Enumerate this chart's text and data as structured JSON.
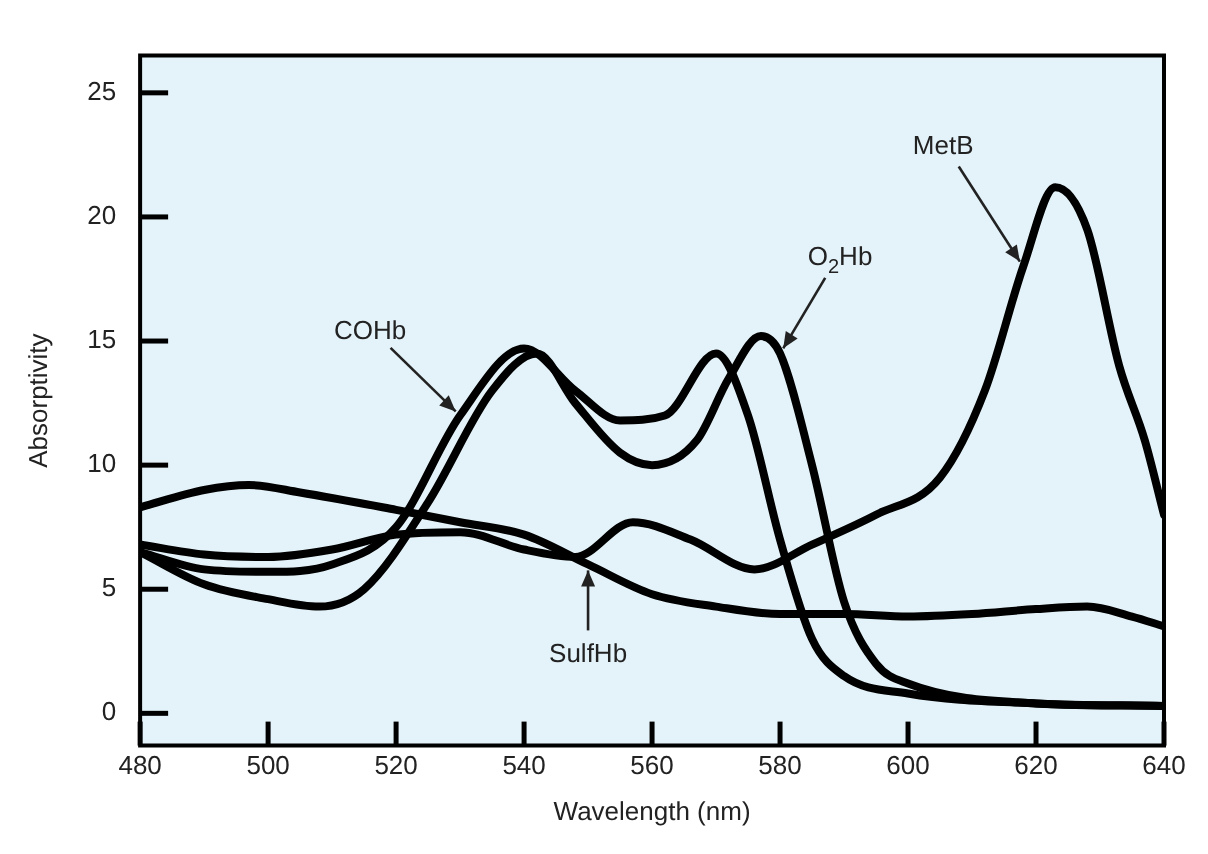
{
  "chart_data": {
    "type": "line",
    "xlabel": "Wavelength (nm)",
    "ylabel": "Absorptivity",
    "xlim": [
      480,
      640
    ],
    "xticks": [
      480,
      500,
      520,
      540,
      560,
      580,
      600,
      620,
      640
    ],
    "ylim": [
      -1.3,
      26.5
    ],
    "yticks": [
      0,
      5,
      10,
      15,
      20,
      25
    ],
    "grid": false,
    "legend": false,
    "marker": "none",
    "line_style": "solid",
    "series": [
      {
        "color": "#000000",
        "x": [
          480,
          490,
          500,
          510,
          520,
          530,
          540,
          548,
          555,
          562,
          570,
          575,
          580,
          585,
          590,
          600,
          620,
          640
        ],
        "values": [
          6.5,
          5.8,
          5.7,
          6,
          7.5,
          12,
          14.7,
          13,
          11.8,
          12,
          14.5,
          12,
          7,
          3,
          1.5,
          0.8,
          0.4,
          0.3
        ]
      },
      {
        "color": "#000000",
        "x": [
          480,
          490,
          500,
          508,
          515,
          525,
          535,
          542,
          548,
          555,
          560,
          567,
          572,
          577,
          580,
          585,
          590,
          595,
          600,
          620,
          640
        ],
        "values": [
          6.5,
          5.2,
          4.6,
          4.3,
          5,
          8.5,
          13,
          14.5,
          12.5,
          10.5,
          10,
          11,
          13.5,
          15.2,
          14.5,
          10,
          4.5,
          2,
          1.2,
          0.4,
          0.3
        ]
      },
      {
        "color": "#000000",
        "x": [
          480,
          490,
          500,
          510,
          520,
          530,
          540,
          548,
          557,
          566,
          576,
          585,
          595,
          605,
          612,
          618,
          623,
          628,
          633,
          637,
          640
        ],
        "values": [
          6.8,
          6.4,
          6.3,
          6.6,
          7.2,
          7.3,
          6.6,
          6.3,
          7.7,
          7,
          5.8,
          6.8,
          8,
          9.5,
          13,
          18,
          21.2,
          19.5,
          14,
          11,
          8
        ]
      },
      {
        "color": "#000000",
        "x": [
          480,
          490,
          497,
          505,
          520,
          530,
          540,
          550,
          560,
          570,
          580,
          590,
          600,
          610,
          620,
          628,
          635,
          640
        ],
        "values": [
          8.3,
          9,
          9.2,
          8.9,
          8.2,
          7.7,
          7.2,
          6,
          4.8,
          4.3,
          4,
          4,
          3.9,
          4,
          4.2,
          4.3,
          3.9,
          3.5
        ]
      }
    ],
    "annotations": [
      {
        "text": "COHb",
        "x": 530,
        "y": 12
      },
      {
        "text": "MetB",
        "x": 618,
        "y": 18
      },
      {
        "text": "O$_{2}$Hb",
        "x": 580,
        "y": 14.5
      },
      {
        "text": "SulfHb",
        "x": 550,
        "y": 6
      }
    ]
  }
}
